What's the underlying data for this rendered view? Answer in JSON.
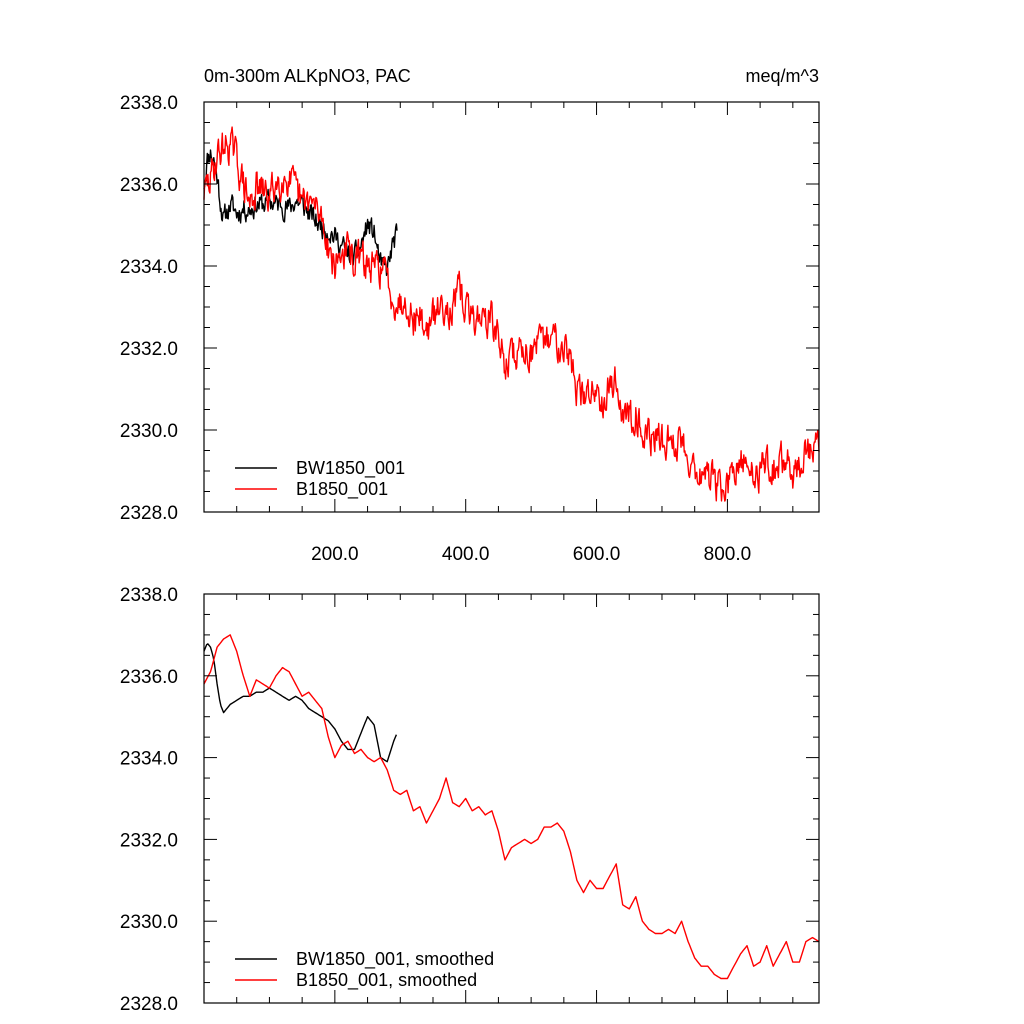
{
  "title_left": "0m-300m ALKpNO3, PAC",
  "title_right": "meq/m^3",
  "colors": {
    "black_series": "#000000",
    "red_series": "#ff0000",
    "axis": "#000000"
  },
  "chart_data": [
    {
      "type": "line",
      "panel": "top",
      "title": "0m-300m ALKpNO3, PAC",
      "units": "meq/m^3",
      "xlim": [
        0,
        940
      ],
      "ylim": [
        2328,
        2338
      ],
      "xticks": [
        200,
        400,
        600,
        800
      ],
      "xtick_labels": [
        "200.0",
        "400.0",
        "600.0",
        "800.0"
      ],
      "yticks": [
        2328,
        2330,
        2332,
        2334,
        2336,
        2338
      ],
      "ytick_labels": [
        "2328.0",
        "2330.0",
        "2332.0",
        "2334.0",
        "2336.0",
        "2338.0"
      ],
      "legend_position": "bottom-left",
      "series": [
        {
          "name": "BW1850_001",
          "color": "#000000",
          "noise": 0.3,
          "seed": 11,
          "x": [
            0,
            5,
            10,
            15,
            20,
            25,
            30,
            35,
            40,
            50,
            60,
            70,
            80,
            90,
            100,
            110,
            120,
            130,
            140,
            150,
            160,
            170,
            180,
            190,
            200,
            210,
            220,
            230,
            240,
            250,
            260,
            270,
            280,
            290,
            295
          ],
          "y": [
            2336.0,
            2336.6,
            2336.8,
            2336.6,
            2336.2,
            2335.6,
            2335.1,
            2335.3,
            2335.5,
            2335.3,
            2335.4,
            2335.4,
            2335.5,
            2335.5,
            2335.6,
            2335.5,
            2335.5,
            2335.4,
            2335.6,
            2335.5,
            2335.3,
            2335.1,
            2335.0,
            2334.9,
            2334.7,
            2334.5,
            2334.3,
            2334.2,
            2334.5,
            2335.0,
            2334.8,
            2334.0,
            2333.9,
            2334.6,
            2334.7
          ]
        },
        {
          "name": "B1850_001",
          "color": "#ff0000",
          "noise": 0.45,
          "seed": 29,
          "x": [
            0,
            10,
            20,
            30,
            40,
            50,
            60,
            70,
            80,
            90,
            100,
            110,
            120,
            130,
            140,
            150,
            160,
            170,
            180,
            190,
            200,
            210,
            220,
            230,
            240,
            250,
            260,
            270,
            280,
            290,
            300,
            310,
            320,
            330,
            340,
            350,
            360,
            370,
            380,
            390,
            400,
            410,
            420,
            430,
            440,
            450,
            460,
            470,
            480,
            490,
            500,
            510,
            520,
            530,
            540,
            550,
            560,
            570,
            580,
            590,
            600,
            610,
            620,
            630,
            640,
            650,
            660,
            670,
            680,
            690,
            700,
            710,
            720,
            730,
            740,
            750,
            760,
            770,
            780,
            790,
            800,
            810,
            820,
            830,
            840,
            850,
            860,
            870,
            880,
            890,
            900,
            910,
            920,
            930,
            940
          ],
          "y": [
            2335.8,
            2336.1,
            2336.7,
            2336.9,
            2337.0,
            2336.6,
            2336.0,
            2335.5,
            2335.9,
            2335.8,
            2335.7,
            2336.0,
            2336.2,
            2336.1,
            2335.8,
            2335.5,
            2335.6,
            2335.4,
            2335.2,
            2334.5,
            2334.0,
            2334.3,
            2334.4,
            2334.1,
            2334.2,
            2334.0,
            2333.9,
            2334.0,
            2333.7,
            2333.2,
            2333.1,
            2333.2,
            2332.7,
            2332.8,
            2332.4,
            2332.7,
            2333.0,
            2333.1,
            2332.9,
            2333.4,
            2333.0,
            2332.7,
            2332.8,
            2332.7,
            2332.7,
            2332.2,
            2331.6,
            2331.8,
            2331.9,
            2332.0,
            2331.9,
            2332.0,
            2332.1,
            2332.3,
            2332.2,
            2332.2,
            2331.7,
            2331.0,
            2330.7,
            2331.0,
            2331.0,
            2330.8,
            2331.1,
            2331.2,
            2330.4,
            2330.3,
            2330.5,
            2330.0,
            2329.8,
            2329.8,
            2329.7,
            2329.8,
            2329.6,
            2329.8,
            2329.4,
            2329.1,
            2328.9,
            2328.9,
            2328.7,
            2328.6,
            2328.6,
            2328.9,
            2329.1,
            2329.2,
            2328.9,
            2329.0,
            2329.3,
            2329.0,
            2329.2,
            2329.3,
            2329.0,
            2329.1,
            2329.4,
            2329.5,
            2329.6
          ]
        }
      ]
    },
    {
      "type": "line",
      "panel": "bottom",
      "xlim": [
        0,
        940
      ],
      "ylim": [
        2328,
        2338
      ],
      "xticks": [
        200,
        400,
        600,
        800
      ],
      "xtick_labels": [],
      "yticks": [
        2328,
        2330,
        2332,
        2334,
        2336,
        2338
      ],
      "ytick_labels": [
        "2328.0",
        "2330.0",
        "2332.0",
        "2334.0",
        "2336.0",
        "2338.0"
      ],
      "legend_position": "bottom-left",
      "series": [
        {
          "name": "BW1850_001, smoothed",
          "color": "#000000",
          "noise": 0.0,
          "seed": 0,
          "x": [
            0,
            5,
            10,
            15,
            20,
            25,
            30,
            35,
            40,
            50,
            60,
            70,
            80,
            90,
            100,
            110,
            120,
            130,
            140,
            150,
            160,
            170,
            180,
            190,
            200,
            210,
            220,
            230,
            240,
            250,
            260,
            270,
            280,
            290,
            295
          ],
          "y": [
            2336.6,
            2336.8,
            2336.7,
            2336.4,
            2335.8,
            2335.3,
            2335.1,
            2335.2,
            2335.3,
            2335.4,
            2335.5,
            2335.5,
            2335.6,
            2335.6,
            2335.7,
            2335.6,
            2335.5,
            2335.4,
            2335.5,
            2335.4,
            2335.2,
            2335.1,
            2335.0,
            2334.9,
            2334.7,
            2334.4,
            2334.2,
            2334.2,
            2334.6,
            2335.0,
            2334.8,
            2334.0,
            2333.9,
            2334.4,
            2334.6
          ]
        },
        {
          "name": "B1850_001, smoothed",
          "color": "#ff0000",
          "noise": 0.0,
          "seed": 0,
          "x": [
            0,
            10,
            20,
            30,
            40,
            50,
            60,
            70,
            80,
            90,
            100,
            110,
            120,
            130,
            140,
            150,
            160,
            170,
            180,
            190,
            200,
            210,
            220,
            230,
            240,
            250,
            260,
            270,
            280,
            290,
            300,
            310,
            320,
            330,
            340,
            350,
            360,
            370,
            380,
            390,
            400,
            410,
            420,
            430,
            440,
            450,
            460,
            470,
            480,
            490,
            500,
            510,
            520,
            530,
            540,
            550,
            560,
            570,
            580,
            590,
            600,
            610,
            620,
            630,
            640,
            650,
            660,
            670,
            680,
            690,
            700,
            710,
            720,
            730,
            740,
            750,
            760,
            770,
            780,
            790,
            800,
            810,
            820,
            830,
            840,
            850,
            860,
            870,
            880,
            890,
            900,
            910,
            920,
            930,
            940
          ],
          "y": [
            2335.8,
            2336.1,
            2336.7,
            2336.9,
            2337.0,
            2336.6,
            2336.0,
            2335.5,
            2335.9,
            2335.8,
            2335.7,
            2336.0,
            2336.2,
            2336.1,
            2335.8,
            2335.5,
            2335.6,
            2335.4,
            2335.2,
            2334.5,
            2334.0,
            2334.3,
            2334.4,
            2334.1,
            2334.2,
            2334.0,
            2333.9,
            2334.0,
            2333.7,
            2333.2,
            2333.1,
            2333.2,
            2332.7,
            2332.8,
            2332.4,
            2332.7,
            2333.0,
            2333.5,
            2332.9,
            2332.8,
            2333.0,
            2332.7,
            2332.8,
            2332.6,
            2332.7,
            2332.2,
            2331.5,
            2331.8,
            2331.9,
            2332.0,
            2331.9,
            2332.0,
            2332.3,
            2332.3,
            2332.4,
            2332.2,
            2331.7,
            2331.0,
            2330.7,
            2331.0,
            2330.8,
            2330.8,
            2331.1,
            2331.4,
            2330.4,
            2330.3,
            2330.6,
            2330.0,
            2329.8,
            2329.7,
            2329.7,
            2329.8,
            2329.7,
            2330.0,
            2329.5,
            2329.1,
            2328.9,
            2328.9,
            2328.7,
            2328.6,
            2328.6,
            2328.9,
            2329.2,
            2329.4,
            2328.9,
            2329.0,
            2329.4,
            2328.9,
            2329.2,
            2329.5,
            2329.0,
            2329.0,
            2329.5,
            2329.6,
            2329.5
          ]
        }
      ]
    }
  ]
}
